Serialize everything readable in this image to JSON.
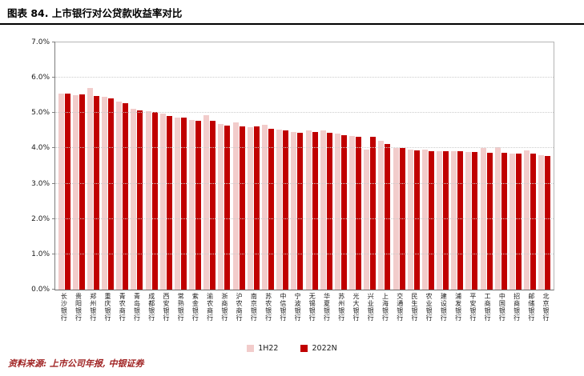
{
  "page": {
    "title": "图表 84. 上市银行对公贷款收益率对比",
    "source": "资料来源: 上市公司年报, 中银证券"
  },
  "colors": {
    "series_1h22": "#F2CCCB",
    "series_2022n": "#C00000",
    "source_text": "#9E1F1F",
    "gridline": "#CCCCCC",
    "axis": "#7D7D7D"
  },
  "legend": {
    "items": [
      "1H22",
      "2022N"
    ]
  },
  "chart_data": {
    "type": "bar",
    "title": "上市银行对公贷款收益率对比",
    "xlabel": "",
    "ylabel": "",
    "ylim": [
      0,
      7
    ],
    "y_ticks": [
      "0.0%",
      "1.0%",
      "2.0%",
      "3.0%",
      "4.0%",
      "5.0%",
      "6.0%",
      "7.0%"
    ],
    "grid": true,
    "legend_position": "bottom",
    "categories": [
      "长沙银行",
      "贵阳银行",
      "郑州银行",
      "重庆银行",
      "青农商行",
      "青岛银行",
      "成都银行",
      "西安银行",
      "常熟银行",
      "紫金银行",
      "渝农商行",
      "浙商银行",
      "沪农商行",
      "南京银行",
      "苏农银行",
      "中信银行",
      "宁波银行",
      "无锡银行",
      "华夏银行",
      "苏州银行",
      "光大银行",
      "兴业银行",
      "上海银行",
      "交通银行",
      "民生银行",
      "农业银行",
      "建设银行",
      "浦发银行",
      "平安银行",
      "工商银行",
      "中国银行",
      "招商银行",
      "邮储银行",
      "北京银行"
    ],
    "series": [
      {
        "name": "1H22",
        "color": "#F2CCCB",
        "values": [
          5.56,
          5.5,
          5.72,
          5.45,
          5.32,
          5.12,
          5.05,
          4.98,
          4.88,
          4.8,
          4.93,
          4.68,
          4.73,
          4.6,
          4.66,
          4.52,
          4.46,
          4.5,
          4.5,
          4.42,
          4.36,
          3.97,
          4.22,
          4.02,
          3.96,
          3.96,
          3.92,
          3.93,
          3.89,
          4.0,
          4.03,
          3.86,
          3.95,
          3.8
        ]
      },
      {
        "name": "2022N",
        "color": "#C00000",
        "values": [
          5.55,
          5.53,
          5.48,
          5.42,
          5.28,
          5.08,
          5.02,
          4.92,
          4.87,
          4.78,
          4.77,
          4.65,
          4.62,
          4.63,
          4.56,
          4.5,
          4.45,
          4.46,
          4.44,
          4.38,
          4.33,
          4.32,
          4.12,
          4.02,
          3.95,
          3.93,
          3.92,
          3.91,
          3.9,
          3.88,
          3.87,
          3.86,
          3.85,
          3.78
        ]
      }
    ]
  }
}
